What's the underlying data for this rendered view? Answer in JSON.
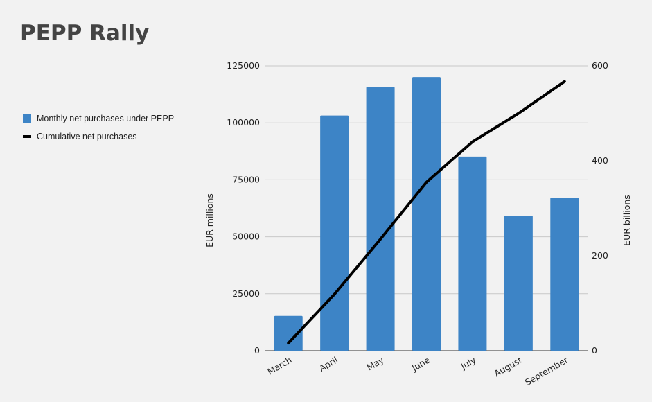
{
  "title": "PEPP Rally",
  "chart_data": {
    "type": "bar",
    "categories": [
      "March",
      "April",
      "May",
      "June",
      "July",
      "August",
      "September"
    ],
    "series": [
      {
        "name": "Monthly net purchases under PEPP",
        "type": "bar",
        "axis": "left",
        "color": "#3d84c6",
        "values": [
          15300,
          103200,
          115800,
          120100,
          85200,
          59300,
          67200
        ]
      },
      {
        "name": "Cumulative net purchases",
        "type": "line",
        "axis": "right",
        "color": "#000000",
        "values": [
          16,
          119,
          235,
          355,
          440,
          500,
          567
        ]
      }
    ],
    "ylabel": "EUR millions",
    "y2label": "EUR billions",
    "ylim": [
      0,
      125000
    ],
    "y2lim": [
      0,
      600
    ],
    "yticks": [
      "0",
      "25000",
      "50000",
      "75000",
      "100000",
      "125000"
    ],
    "y2ticks": [
      "0",
      "200",
      "400",
      "600"
    ],
    "grid": true,
    "legend_position": "left"
  }
}
